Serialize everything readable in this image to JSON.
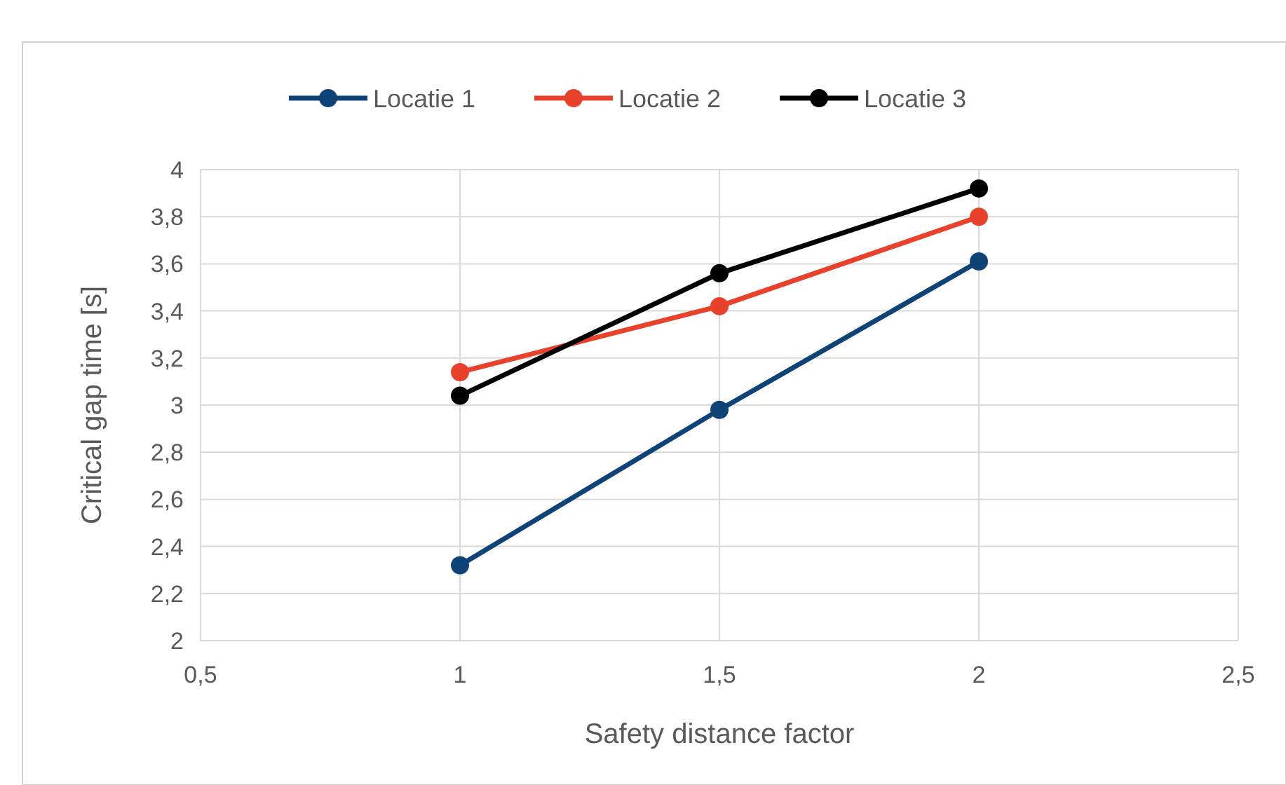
{
  "chart_data": {
    "type": "line",
    "xlabel": "Safety distance factor",
    "ylabel": "Critical gap time [s]",
    "x": [
      1,
      1.5,
      2
    ],
    "series": [
      {
        "name": "Locatie 1",
        "color": "#0f4378",
        "values": [
          2.32,
          2.98,
          3.61
        ]
      },
      {
        "name": "Locatie 2",
        "color": "#e8412c",
        "values": [
          3.14,
          3.42,
          3.8
        ]
      },
      {
        "name": "Locatie 3",
        "color": "#000000",
        "values": [
          3.04,
          3.56,
          3.92
        ]
      }
    ],
    "xlim": [
      0.5,
      2.5
    ],
    "xticks": [
      {
        "value": 0.5,
        "label": "0,5"
      },
      1,
      {
        "value": 1.5,
        "label": "1,5"
      },
      2,
      {
        "value": 2.5,
        "label": "2,5"
      }
    ],
    "ylim": [
      2,
      4
    ],
    "yticks": [
      2,
      {
        "value": 2.2,
        "label": "2,2"
      },
      {
        "value": 2.4,
        "label": "2,4"
      },
      {
        "value": 2.6,
        "label": "2,6"
      },
      {
        "value": 2.8,
        "label": "2,8"
      },
      3,
      {
        "value": 3.2,
        "label": "3,2"
      },
      {
        "value": 3.4,
        "label": "3,4"
      },
      {
        "value": 3.6,
        "label": "3,6"
      },
      {
        "value": 3.8,
        "label": "3,8"
      },
      4
    ],
    "grid": true,
    "legend": "top",
    "marker": "circle",
    "line_style": "solid"
  }
}
